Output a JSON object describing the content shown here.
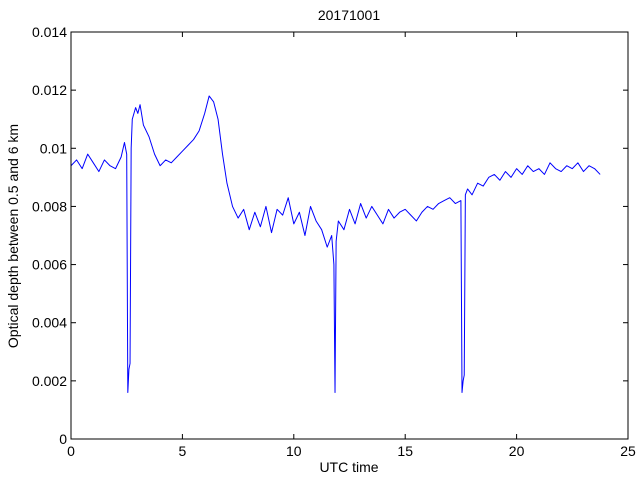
{
  "chart_data": {
    "type": "line",
    "title": "20171001",
    "xlabel": "UTC time",
    "ylabel": "Optical depth between 0.5 and 6 km",
    "xlim": [
      0,
      25
    ],
    "ylim": [
      0,
      0.014
    ],
    "x_ticks": [
      0,
      5,
      10,
      15,
      20,
      25
    ],
    "x_tick_labels": [
      "0",
      "5",
      "10",
      "15",
      "20",
      "25"
    ],
    "y_ticks": [
      0,
      0.002,
      0.004,
      0.006,
      0.008,
      0.01,
      0.012,
      0.014
    ],
    "y_tick_labels": [
      "0",
      "0.002",
      "0.004",
      "0.006",
      "0.008",
      "0.01",
      "0.012",
      "0.014"
    ],
    "grid": false,
    "series": [
      {
        "color": "#0000ff",
        "x": [
          0.0,
          0.25,
          0.5,
          0.75,
          1.0,
          1.25,
          1.5,
          1.75,
          2.0,
          2.25,
          2.4,
          2.5,
          2.55,
          2.6,
          2.65,
          2.7,
          2.75,
          2.9,
          3.0,
          3.1,
          3.25,
          3.5,
          3.75,
          4.0,
          4.25,
          4.5,
          4.75,
          5.0,
          5.25,
          5.5,
          5.75,
          6.0,
          6.2,
          6.4,
          6.6,
          6.8,
          7.0,
          7.25,
          7.5,
          7.75,
          8.0,
          8.25,
          8.5,
          8.75,
          9.0,
          9.25,
          9.5,
          9.75,
          10.0,
          10.25,
          10.5,
          10.75,
          11.0,
          11.25,
          11.5,
          11.7,
          11.8,
          11.85,
          11.9,
          12.0,
          12.25,
          12.5,
          12.75,
          13.0,
          13.25,
          13.5,
          13.75,
          14.0,
          14.25,
          14.5,
          14.75,
          15.0,
          15.25,
          15.5,
          15.75,
          16.0,
          16.25,
          16.5,
          16.75,
          17.0,
          17.25,
          17.5,
          17.55,
          17.6,
          17.65,
          17.7,
          17.8,
          18.0,
          18.25,
          18.5,
          18.75,
          19.0,
          19.25,
          19.5,
          19.75,
          20.0,
          20.25,
          20.5,
          20.75,
          21.0,
          21.25,
          21.5,
          21.75,
          22.0,
          22.25,
          22.5,
          22.75,
          23.0,
          23.25,
          23.5,
          23.75
        ],
        "y": [
          0.0094,
          0.0096,
          0.0093,
          0.0098,
          0.0095,
          0.0092,
          0.0096,
          0.0094,
          0.0093,
          0.0097,
          0.0102,
          0.0098,
          0.0016,
          0.0024,
          0.0026,
          0.01,
          0.011,
          0.0114,
          0.0112,
          0.0115,
          0.0108,
          0.0104,
          0.0098,
          0.0094,
          0.0096,
          0.0095,
          0.0097,
          0.0099,
          0.0101,
          0.0103,
          0.0106,
          0.0112,
          0.0118,
          0.0116,
          0.011,
          0.0098,
          0.0088,
          0.008,
          0.0076,
          0.0079,
          0.0072,
          0.0078,
          0.0073,
          0.008,
          0.0071,
          0.0079,
          0.0077,
          0.0083,
          0.0074,
          0.0078,
          0.007,
          0.008,
          0.0075,
          0.0072,
          0.0066,
          0.007,
          0.006,
          0.0016,
          0.0068,
          0.0075,
          0.0072,
          0.0079,
          0.0074,
          0.0081,
          0.0076,
          0.008,
          0.0077,
          0.0074,
          0.0079,
          0.0076,
          0.0078,
          0.0079,
          0.0077,
          0.0075,
          0.0078,
          0.008,
          0.0079,
          0.0081,
          0.0082,
          0.0083,
          0.0081,
          0.0082,
          0.0016,
          0.002,
          0.0022,
          0.0084,
          0.0086,
          0.0084,
          0.0088,
          0.0087,
          0.009,
          0.0091,
          0.0089,
          0.0092,
          0.009,
          0.0093,
          0.0091,
          0.0094,
          0.0092,
          0.0093,
          0.0091,
          0.0095,
          0.0093,
          0.0092,
          0.0094,
          0.0093,
          0.0095,
          0.0092,
          0.0094,
          0.0093,
          0.0091
        ]
      }
    ]
  }
}
